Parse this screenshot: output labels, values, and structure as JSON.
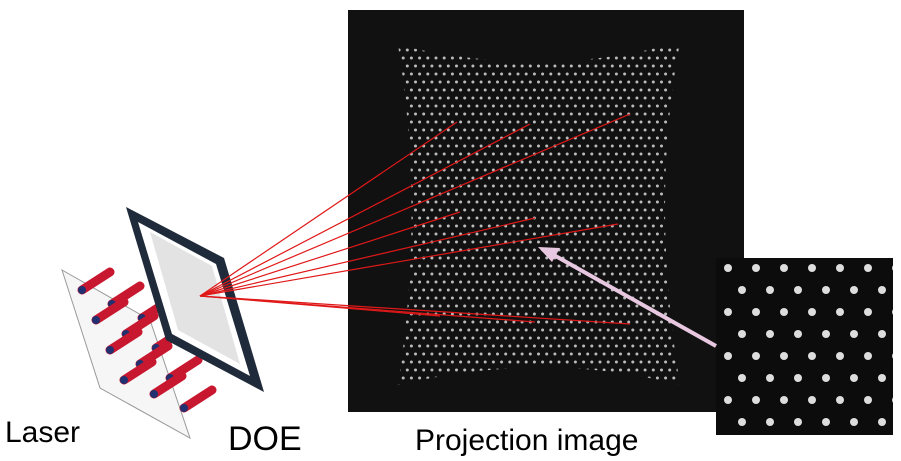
{
  "labels": {
    "laser": "Laser",
    "doe": "DOE",
    "projection": "Projection image"
  }
}
